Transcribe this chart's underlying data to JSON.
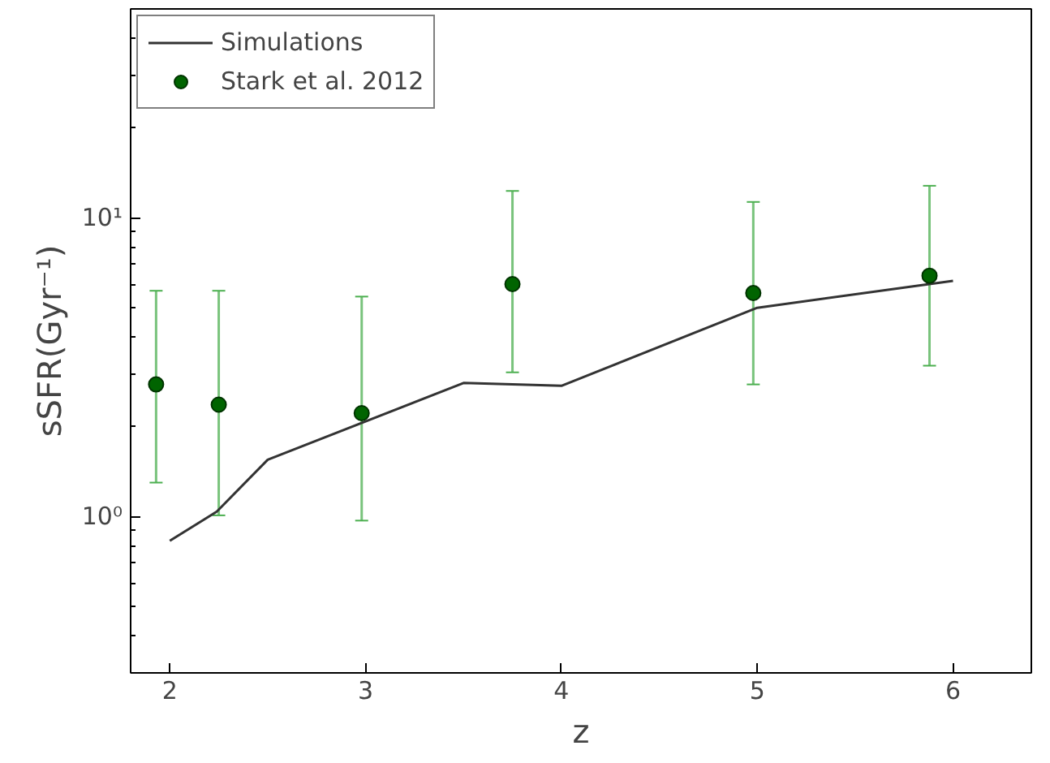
{
  "chart_data": {
    "type": "line",
    "xlabel": "z",
    "ylabel": "sSFR(Gyr⁻¹)",
    "log": "y",
    "xlim": [
      1.8,
      6.4
    ],
    "ylim": [
      0.3,
      50
    ],
    "xticks": [
      2,
      3,
      4,
      5,
      6
    ],
    "yticks": [
      {
        "value": 1,
        "label": "10⁰"
      },
      {
        "value": 10,
        "label": "10¹"
      }
    ],
    "grid": false,
    "legend": "top left",
    "series": [
      {
        "name": "Simulations",
        "color": "#333333",
        "marker": "none",
        "x": [
          2.0,
          2.24,
          2.5,
          3.5,
          4.0,
          5.0,
          6.0
        ],
        "values": [
          0.83,
          1.04,
          1.55,
          2.8,
          2.74,
          5.0,
          6.15
        ]
      },
      {
        "name": "Stark et al. 2012",
        "type": "scatter",
        "color": "#006400",
        "marker": "circle",
        "x": [
          1.93,
          2.25,
          2.98,
          3.75,
          4.98,
          5.88
        ],
        "values": [
          2.77,
          2.37,
          2.22,
          6.0,
          5.6,
          6.4
        ],
        "errors": [
          [
            1.3,
            5.7
          ],
          [
            1.01,
            5.7
          ],
          [
            0.97,
            5.45
          ],
          [
            3.04,
            12.3
          ],
          [
            2.77,
            11.3
          ],
          [
            3.2,
            12.8
          ]
        ]
      }
    ]
  }
}
